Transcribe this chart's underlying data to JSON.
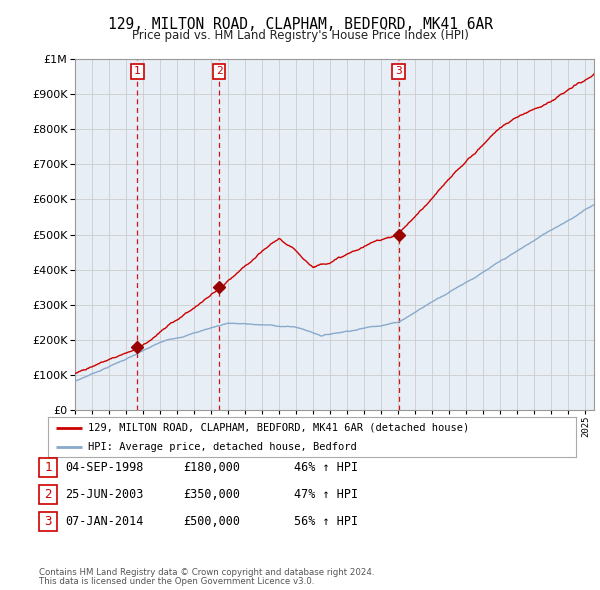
{
  "title": "129, MILTON ROAD, CLAPHAM, BEDFORD, MK41 6AR",
  "subtitle": "Price paid vs. HM Land Registry's House Price Index (HPI)",
  "legend_line1": "129, MILTON ROAD, CLAPHAM, BEDFORD, MK41 6AR (detached house)",
  "legend_line2": "HPI: Average price, detached house, Bedford",
  "sale_labels": [
    "1",
    "2",
    "3"
  ],
  "sale_decimal": [
    1998.671,
    2003.479,
    2014.014
  ],
  "sale_prices": [
    180000,
    350000,
    500000
  ],
  "sale_info": [
    [
      "1",
      "04-SEP-1998",
      "£180,000",
      "46% ↑ HPI"
    ],
    [
      "2",
      "25-JUN-2003",
      "£350,000",
      "47% ↑ HPI"
    ],
    [
      "3",
      "07-JAN-2014",
      "£500,000",
      "56% ↑ HPI"
    ]
  ],
  "footer_line1": "Contains HM Land Registry data © Crown copyright and database right 2024.",
  "footer_line2": "This data is licensed under the Open Government Licence v3.0.",
  "red_color": "#cc0000",
  "blue_color": "#88aacc",
  "marker_color": "#990000",
  "vline_color": "#cc0000",
  "chart_bg": "#e8eef5",
  "background_color": "#ffffff",
  "grid_color": "#cccccc",
  "ylim": [
    0,
    1000000
  ],
  "xlim_start": 1995.0,
  "xlim_end": 2025.5,
  "yticks": [
    0,
    100000,
    200000,
    300000,
    400000,
    500000,
    600000,
    700000,
    800000,
    900000,
    1000000
  ]
}
